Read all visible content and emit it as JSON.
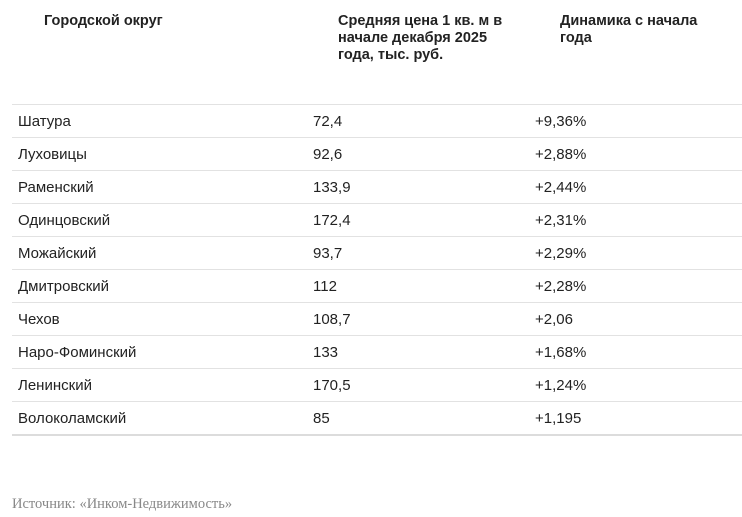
{
  "table": {
    "headers": [
      "Городской округ",
      "Средняя цена 1 кв. м в начале декабря 2025 года, тыс. руб.",
      "Динамика с начала года"
    ],
    "rows": [
      [
        "Шатура",
        "72,4",
        "+9,36%"
      ],
      [
        "Луховицы",
        "92,6",
        "+2,88%"
      ],
      [
        "Раменский",
        "133,9",
        "+2,44%"
      ],
      [
        "Одинцовский",
        "172,4",
        "+2,31%"
      ],
      [
        "Можайский",
        "93,7",
        "+2,29%"
      ],
      [
        "Дмитровский",
        "112",
        "+2,28%"
      ],
      [
        "Чехов",
        "108,7",
        "+2,06"
      ],
      [
        "Наро-Фоминский",
        "133",
        "+1,68%"
      ],
      [
        "Ленинский",
        "170,5",
        "+1,24%"
      ],
      [
        "Волоколамский",
        "85",
        "+1,195"
      ]
    ]
  },
  "source": "Источник: «Инком-Недвижимость»"
}
